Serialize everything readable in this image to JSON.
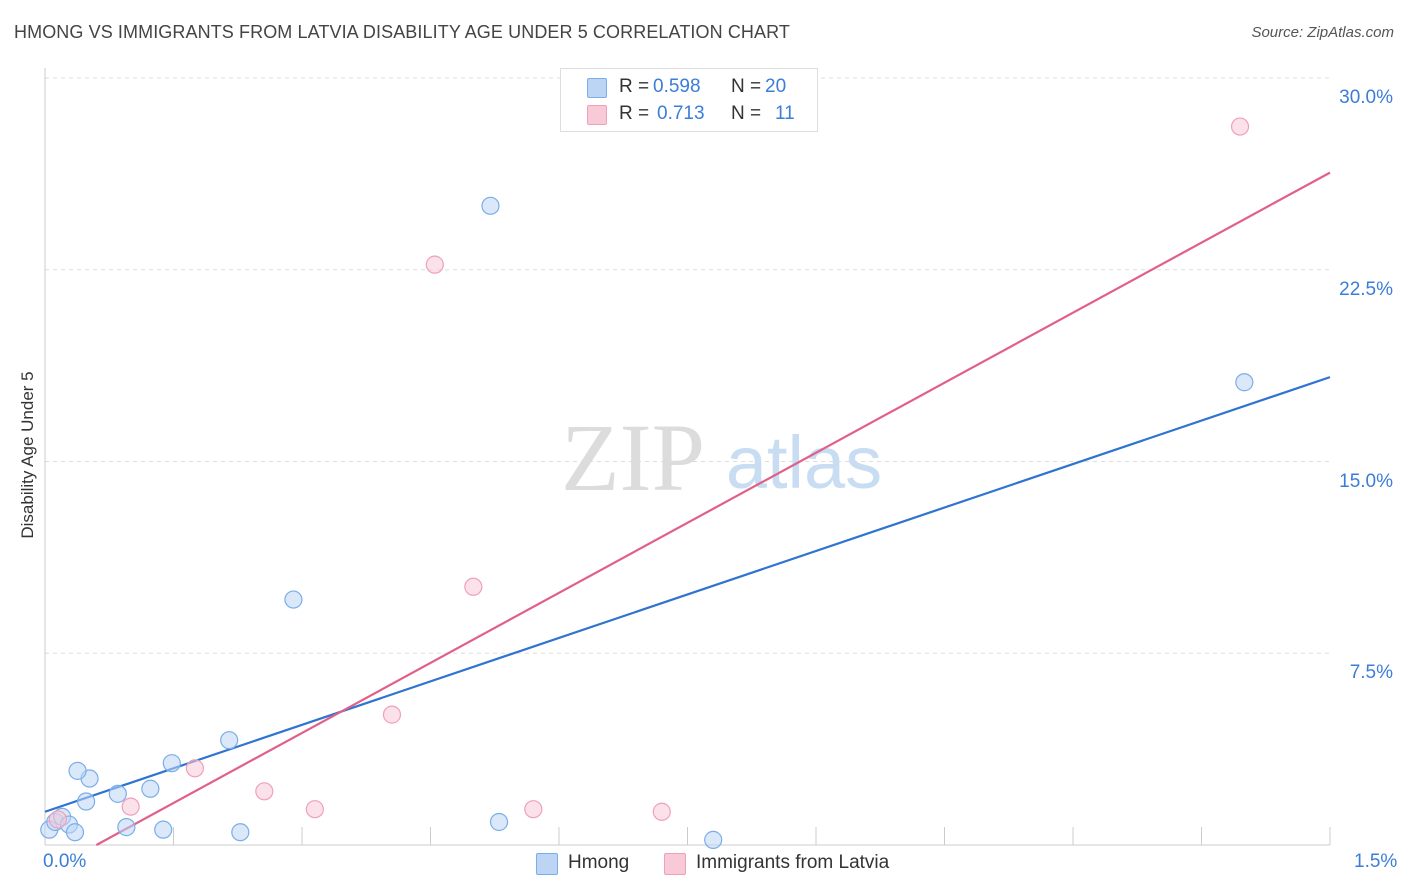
{
  "title": "HMONG VS IMMIGRANTS FROM LATVIA DISABILITY AGE UNDER 5 CORRELATION CHART",
  "source": "Source: ZipAtlas.com",
  "watermark": {
    "zip": "ZIP",
    "atlas": "atlas"
  },
  "legend": {
    "r_label": "R =",
    "n_label": "N =",
    "rows": [
      {
        "r": "0.598",
        "n": "20"
      },
      {
        "r": "0.713",
        "n": "11"
      }
    ]
  },
  "chart_data": {
    "type": "scatter",
    "title": "HMONG VS IMMIGRANTS FROM LATVIA DISABILITY AGE UNDER 5 CORRELATION CHART",
    "xlabel": "",
    "ylabel": "Disability Age Under 5",
    "xlim": [
      0.0,
      1.5
    ],
    "ylim": [
      0.0,
      30.0
    ],
    "x_tick_labels": [
      "0.0%",
      "1.5%"
    ],
    "y_tick_labels": [
      "7.5%",
      "15.0%",
      "22.5%",
      "30.0%"
    ],
    "y_ticks": [
      7.5,
      15.0,
      22.5,
      30.0
    ],
    "series": [
      {
        "name": "Hmong",
        "color": "#7aaee8",
        "fill": "#bcd5f5",
        "line_color": "#2f74d0",
        "points": [
          [
            0.005,
            0.6
          ],
          [
            0.012,
            0.9
          ],
          [
            0.02,
            1.1
          ],
          [
            0.028,
            0.8
          ],
          [
            0.035,
            0.5
          ],
          [
            0.048,
            1.7
          ],
          [
            0.052,
            2.6
          ],
          [
            0.038,
            2.9
          ],
          [
            0.085,
            2.0
          ],
          [
            0.095,
            0.7
          ],
          [
            0.123,
            2.2
          ],
          [
            0.138,
            0.6
          ],
          [
            0.148,
            3.2
          ],
          [
            0.215,
            4.1
          ],
          [
            0.228,
            0.5
          ],
          [
            0.29,
            9.6
          ],
          [
            0.52,
            25.0
          ],
          [
            0.53,
            0.9
          ],
          [
            0.78,
            0.2
          ],
          [
            1.4,
            18.1
          ]
        ],
        "trendline": {
          "x": [
            0.0,
            1.5
          ],
          "y": [
            1.3,
            18.3
          ]
        }
      },
      {
        "name": "Immigrants from Latvia",
        "color": "#f0a0b8",
        "fill": "#f8cad8",
        "line_color": "#e0608a",
        "points": [
          [
            0.015,
            1.0
          ],
          [
            0.1,
            1.5
          ],
          [
            0.175,
            3.0
          ],
          [
            0.256,
            2.1
          ],
          [
            0.315,
            1.4
          ],
          [
            0.405,
            5.1
          ],
          [
            0.455,
            22.7
          ],
          [
            0.5,
            10.1
          ],
          [
            0.57,
            1.4
          ],
          [
            0.72,
            1.3
          ],
          [
            1.395,
            28.1
          ]
        ],
        "trendline": {
          "x": [
            0.06,
            1.5
          ],
          "y": [
            0.0,
            26.3
          ]
        }
      }
    ]
  }
}
